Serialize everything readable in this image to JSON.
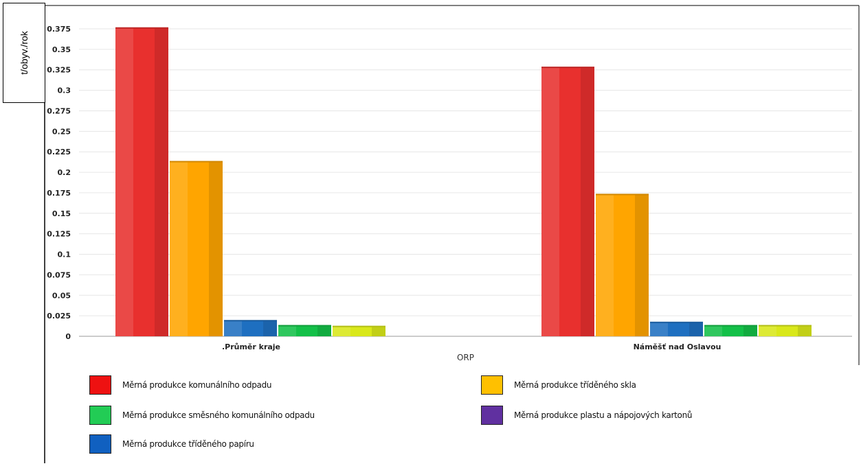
{
  "chart_data": {
    "type": "bar",
    "ylabel": "t/obyv./rok",
    "xlabel": "ORP",
    "categories": [
      ".Průměr kraje",
      "Náměšť nad Oslavou"
    ],
    "ylim": [
      0,
      0.375
    ],
    "yticks": [
      "0",
      "0.025",
      "0.05",
      "0.075",
      "0.1",
      "0.125",
      "0.15",
      "0.175",
      "0.2",
      "0.225",
      "0.25",
      "0.275",
      "0.3",
      "0.325",
      "0.35",
      "0.375"
    ],
    "grid": true,
    "legend_position": "bottom",
    "series": [
      {
        "name": "Měrná produkce komunálního odpadu",
        "values": [
          0.376,
          0.328
        ],
        "color": "#e8302e"
      },
      {
        "name": "Měrná produkce tříděného skla",
        "values": [
          0.213,
          0.173
        ],
        "color": "#ffa500"
      },
      {
        "name": "Měrná produkce tříděného papíru",
        "values": [
          0.019,
          0.017
        ],
        "color": "#1e6fc0"
      },
      {
        "name": "Měrná produkce směsného komunálního odpadu",
        "values": [
          0.013,
          0.013
        ],
        "color": "#13c048"
      },
      {
        "name": "Měrná produkce plastu a nápojových kartonů",
        "values": [
          0.012,
          0.013
        ],
        "color": "#d9e81a"
      }
    ],
    "legend": [
      {
        "label": "Měrná produkce komunálního odpadu",
        "color": "#ee1111"
      },
      {
        "label": "Měrná produkce tříděného skla",
        "color": "#ffc000"
      },
      {
        "label": "Měrná produkce směsného komunálního odpadu",
        "color": "#22cc55"
      },
      {
        "label": "Měrná produkce plastu a nápojových kartonů",
        "color": "#6030a0"
      },
      {
        "label": "Měrná produkce tříděného papíru",
        "color": "#1060c0"
      }
    ]
  }
}
